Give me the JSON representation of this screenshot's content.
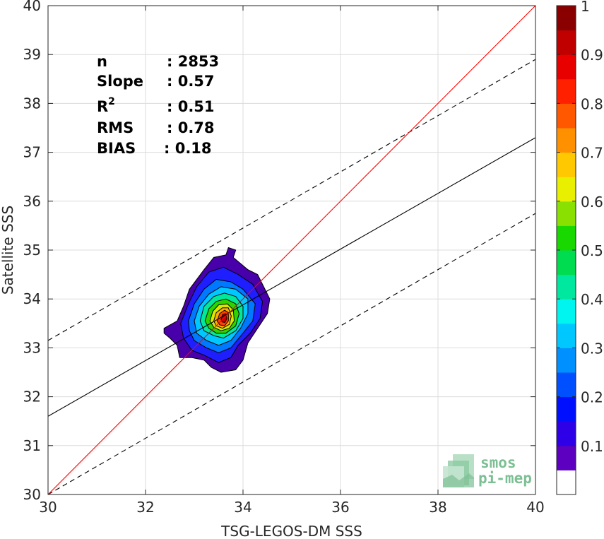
{
  "chart_data": {
    "type": "contour",
    "xlabel": "TSG-LEGOS-DM SSS",
    "ylabel": "Satellite SSS",
    "xlim": [
      30,
      40
    ],
    "ylim": [
      30,
      40
    ],
    "xticks": [
      30,
      32,
      34,
      36,
      38,
      40
    ],
    "yticks": [
      30,
      31,
      32,
      33,
      34,
      35,
      36,
      37,
      38,
      39,
      40
    ],
    "grid": true,
    "stats": [
      {
        "label": "n",
        "value": ": 2853"
      },
      {
        "label": "Slope",
        "value": ": 0.57"
      },
      {
        "label": "R",
        "sup": "2",
        "value": ": 0.51"
      },
      {
        "label": "RMS",
        "value": ": 0.78"
      },
      {
        "label": "BIAS",
        "value": ": 0.18"
      }
    ],
    "lines": {
      "identity": {
        "x": [
          30,
          40
        ],
        "y": [
          30,
          40
        ],
        "color": "#ff0000"
      },
      "fit": {
        "x": [
          30,
          40
        ],
        "y": [
          31.6,
          37.3
        ],
        "color": "#000000"
      },
      "upper": {
        "x": [
          30,
          40
        ],
        "y": [
          33.15,
          38.9
        ],
        "color": "#000000",
        "dash": true
      },
      "lower": {
        "x": [
          30,
          40
        ],
        "y": [
          30.0,
          35.75
        ],
        "color": "#000000",
        "dash": true
      }
    },
    "density": {
      "center": [
        33.62,
        33.62
      ],
      "levels": [
        0.05,
        0.15,
        0.25,
        0.35,
        0.45,
        0.55,
        0.65,
        0.75,
        0.85,
        0.95
      ],
      "contours": [
        {
          "level": 0.05,
          "points": [
            [
              32.38,
              33.4
            ],
            [
              32.65,
              33.55
            ],
            [
              32.78,
              33.85
            ],
            [
              32.9,
              34.2
            ],
            [
              33.2,
              34.6
            ],
            [
              33.4,
              34.85
            ],
            [
              33.65,
              34.9
            ],
            [
              33.7,
              35.05
            ],
            [
              33.85,
              35.0
            ],
            [
              33.8,
              34.85
            ],
            [
              34.1,
              34.6
            ],
            [
              34.3,
              34.5
            ],
            [
              34.55,
              34.0
            ],
            [
              34.5,
              33.7
            ],
            [
              34.3,
              33.4
            ],
            [
              34.1,
              33.1
            ],
            [
              34.0,
              32.75
            ],
            [
              33.85,
              32.55
            ],
            [
              33.55,
              32.5
            ],
            [
              33.35,
              32.6
            ],
            [
              33.2,
              32.75
            ],
            [
              32.95,
              32.8
            ],
            [
              32.7,
              32.8
            ],
            [
              32.65,
              33.05
            ],
            [
              32.5,
              33.2
            ],
            [
              32.38,
              33.3
            ]
          ]
        },
        {
          "level": 0.15,
          "points": [
            [
              32.72,
              33.5
            ],
            [
              32.88,
              33.9
            ],
            [
              33.05,
              34.25
            ],
            [
              33.3,
              34.55
            ],
            [
              33.6,
              34.65
            ],
            [
              33.9,
              34.5
            ],
            [
              34.2,
              34.3
            ],
            [
              34.4,
              33.95
            ],
            [
              34.35,
              33.6
            ],
            [
              34.15,
              33.3
            ],
            [
              33.9,
              33.05
            ],
            [
              33.75,
              32.8
            ],
            [
              33.5,
              32.7
            ],
            [
              33.2,
              32.85
            ],
            [
              32.95,
              32.95
            ],
            [
              32.78,
              33.2
            ]
          ]
        },
        {
          "level": 0.25,
          "points": [
            [
              32.88,
              33.55
            ],
            [
              33.0,
              33.9
            ],
            [
              33.2,
              34.2
            ],
            [
              33.45,
              34.4
            ],
            [
              33.75,
              34.35
            ],
            [
              34.0,
              34.2
            ],
            [
              34.25,
              33.9
            ],
            [
              34.2,
              33.55
            ],
            [
              34.0,
              33.3
            ],
            [
              33.75,
              33.0
            ],
            [
              33.5,
              32.9
            ],
            [
              33.25,
              33.0
            ],
            [
              33.0,
              33.15
            ],
            [
              32.9,
              33.35
            ]
          ]
        },
        {
          "level": 0.35,
          "points": [
            [
              33.0,
              33.55
            ],
            [
              33.1,
              33.85
            ],
            [
              33.3,
              34.1
            ],
            [
              33.55,
              34.25
            ],
            [
              33.85,
              34.2
            ],
            [
              34.1,
              34.0
            ],
            [
              34.1,
              33.7
            ],
            [
              33.95,
              33.4
            ],
            [
              33.75,
              33.15
            ],
            [
              33.5,
              33.05
            ],
            [
              33.25,
              33.15
            ],
            [
              33.05,
              33.3
            ]
          ]
        },
        {
          "level": 0.45,
          "points": [
            [
              33.12,
              33.55
            ],
            [
              33.2,
              33.85
            ],
            [
              33.4,
              34.05
            ],
            [
              33.62,
              34.12
            ],
            [
              33.85,
              34.05
            ],
            [
              34.0,
              33.85
            ],
            [
              34.0,
              33.6
            ],
            [
              33.85,
              33.35
            ],
            [
              33.6,
              33.2
            ],
            [
              33.4,
              33.25
            ],
            [
              33.2,
              33.35
            ]
          ]
        },
        {
          "level": 0.55,
          "points": [
            [
              33.22,
              33.55
            ],
            [
              33.3,
              33.8
            ],
            [
              33.45,
              33.95
            ],
            [
              33.65,
              34.0
            ],
            [
              33.85,
              33.9
            ],
            [
              33.92,
              33.7
            ],
            [
              33.85,
              33.45
            ],
            [
              33.65,
              33.3
            ],
            [
              33.45,
              33.3
            ],
            [
              33.3,
              33.4
            ]
          ]
        },
        {
          "level": 0.65,
          "points": [
            [
              33.32,
              33.55
            ],
            [
              33.38,
              33.75
            ],
            [
              33.5,
              33.88
            ],
            [
              33.68,
              33.9
            ],
            [
              33.8,
              33.78
            ],
            [
              33.82,
              33.55
            ],
            [
              33.72,
              33.4
            ],
            [
              33.55,
              33.35
            ],
            [
              33.4,
              33.42
            ]
          ]
        },
        {
          "level": 0.75,
          "points": [
            [
              33.4,
              33.55
            ],
            [
              33.45,
              33.72
            ],
            [
              33.58,
              33.82
            ],
            [
              33.7,
              33.82
            ],
            [
              33.76,
              33.65
            ],
            [
              33.72,
              33.48
            ],
            [
              33.58,
              33.4
            ],
            [
              33.45,
              33.45
            ]
          ]
        },
        {
          "level": 0.85,
          "points": [
            [
              33.47,
              33.55
            ],
            [
              33.52,
              33.7
            ],
            [
              33.62,
              33.77
            ],
            [
              33.7,
              33.72
            ],
            [
              33.7,
              33.55
            ],
            [
              33.62,
              33.45
            ],
            [
              33.52,
              33.47
            ]
          ]
        },
        {
          "level": 0.95,
          "points": [
            [
              33.55,
              33.58
            ],
            [
              33.58,
              33.68
            ],
            [
              33.64,
              33.7
            ],
            [
              33.67,
              33.6
            ],
            [
              33.63,
              33.52
            ],
            [
              33.57,
              33.53
            ]
          ]
        }
      ]
    },
    "colorbar": {
      "min": 0,
      "max": 1,
      "ticks": [
        "0.1",
        "0.2",
        "0.3",
        "0.4",
        "0.5",
        "0.6",
        "0.7",
        "0.8",
        "0.9",
        "1"
      ],
      "tick_values": [
        0.1,
        0.2,
        0.3,
        0.4,
        0.5,
        0.6,
        0.7,
        0.8,
        0.9,
        1.0
      ],
      "colors": [
        "#ffffff",
        "#5d00c0",
        "#2e00e8",
        "#0010ff",
        "#0050ff",
        "#0090ff",
        "#00c8ff",
        "#00f4f0",
        "#00e8a0",
        "#00dc50",
        "#18d800",
        "#8ae000",
        "#e8f000",
        "#ffc800",
        "#ff9000",
        "#ff5800",
        "#ff2000",
        "#e80000",
        "#c00000",
        "#8a0000"
      ]
    },
    "contour_fill_colors": [
      "#4700aa",
      "#1e1eff",
      "#0078ff",
      "#00c8ff",
      "#00e89a",
      "#2ed400",
      "#d8e800",
      "#ffac00",
      "#ff4000",
      "#c80000"
    ]
  },
  "logo": {
    "line1": "smos",
    "line2": "pi-mep"
  }
}
